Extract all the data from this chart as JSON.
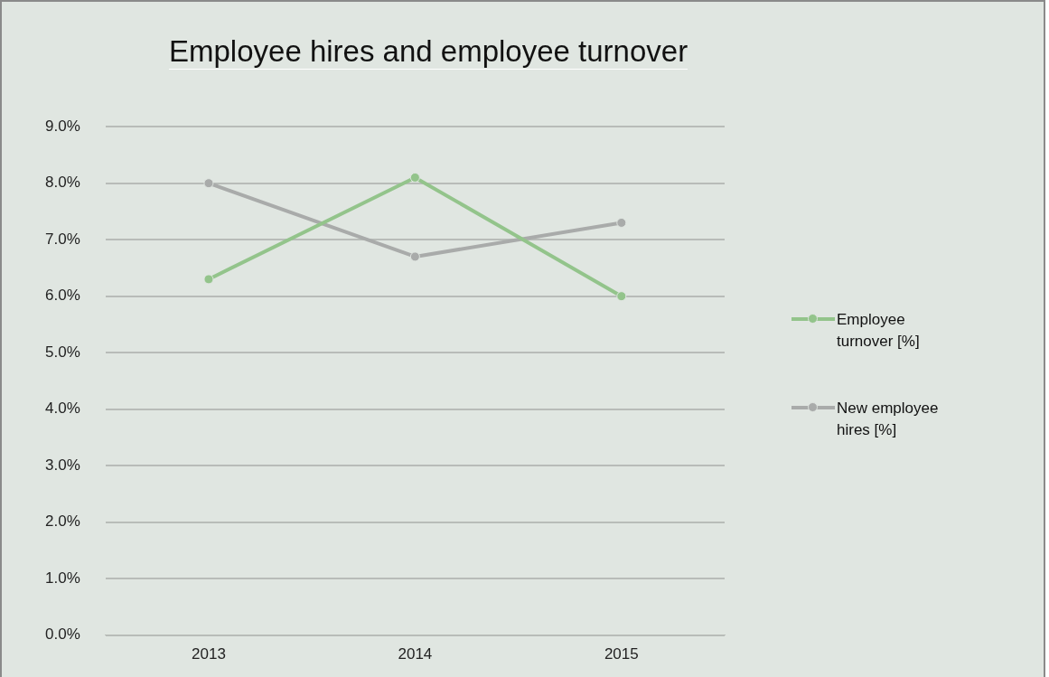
{
  "chart_data": {
    "type": "line",
    "title": "Employee hires and employee turnover",
    "categories": [
      "2013",
      "2014",
      "2015"
    ],
    "series": [
      {
        "name": "Employee turnover [%]",
        "color": "#93c48b",
        "values": [
          6.3,
          8.1,
          6.0
        ]
      },
      {
        "name": "New employee hires [%]",
        "color": "#a9abaa",
        "values": [
          8.0,
          6.7,
          7.3
        ]
      }
    ],
    "ylim": [
      0,
      9
    ],
    "yticks": [
      {
        "value": 0,
        "label": "0.0%"
      },
      {
        "value": 1,
        "label": "1.0%"
      },
      {
        "value": 2,
        "label": "2.0%"
      },
      {
        "value": 3,
        "label": "3.0%"
      },
      {
        "value": 4,
        "label": "4.0%"
      },
      {
        "value": 5,
        "label": "5.0%"
      },
      {
        "value": 6,
        "label": "6.0%"
      },
      {
        "value": 7,
        "label": "7.0%"
      },
      {
        "value": 8,
        "label": "8.0%"
      },
      {
        "value": 9,
        "label": "9.0%"
      }
    ],
    "grid": "y",
    "legend": "right",
    "marker": "circle",
    "line_style": "solid"
  }
}
